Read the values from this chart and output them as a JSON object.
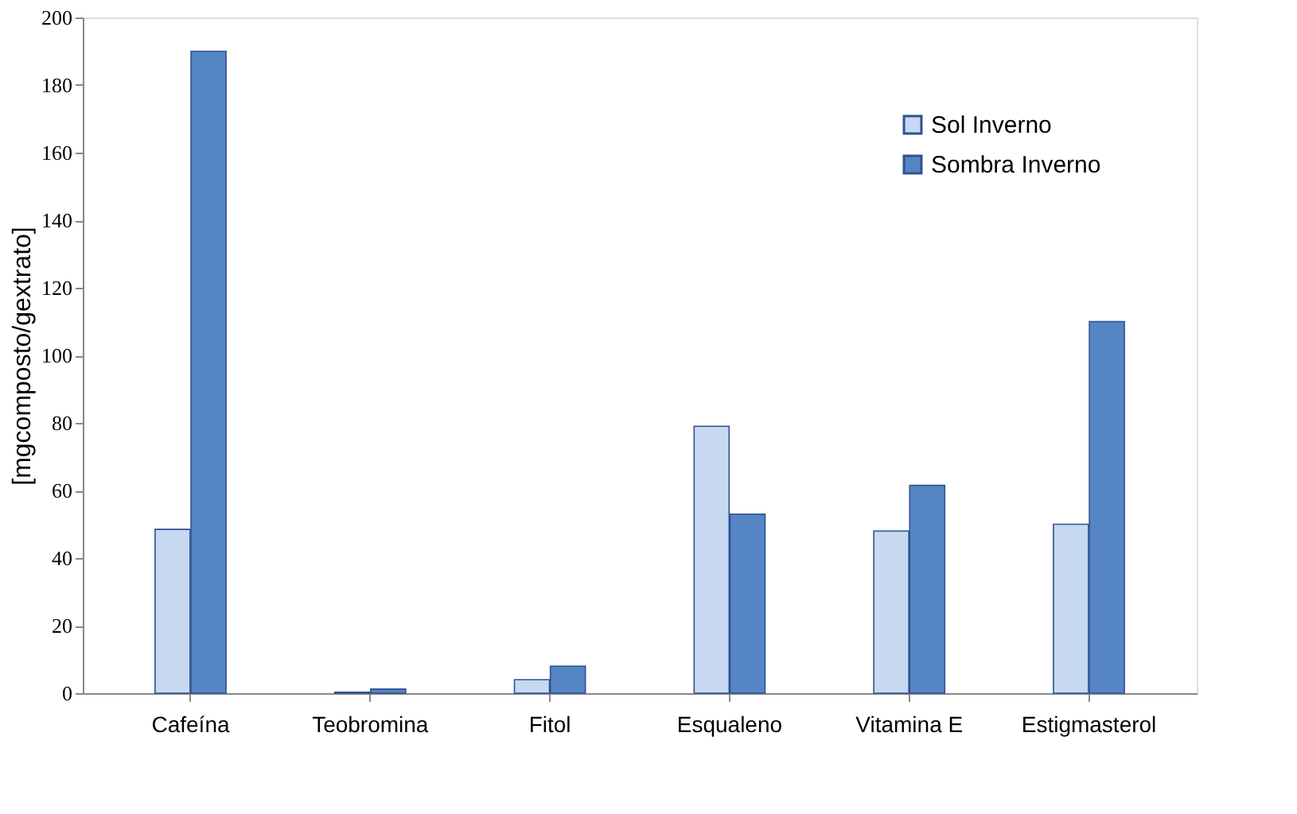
{
  "chart_data": {
    "type": "bar",
    "ylabel": "[mgcomposto/gextrato]",
    "categories": [
      "Cafeína",
      "Teobromina",
      "Fitol",
      "Esqualeno",
      "Vitamina E",
      "Estigmasterol"
    ],
    "series": [
      {
        "name": "Sol Inverno",
        "color": "#c6d9f1",
        "values": [
          48.5,
          0.3,
          4,
          79,
          48,
          50
        ]
      },
      {
        "name": "Sombra Inverno",
        "color": "#5585c5",
        "values": [
          190,
          1.2,
          8,
          53,
          61.5,
          110
        ]
      }
    ],
    "ylim": [
      0,
      200
    ],
    "yticks": [
      0,
      20,
      40,
      60,
      80,
      100,
      120,
      140,
      160,
      180,
      200
    ],
    "grid": false,
    "legend": "top right"
  }
}
